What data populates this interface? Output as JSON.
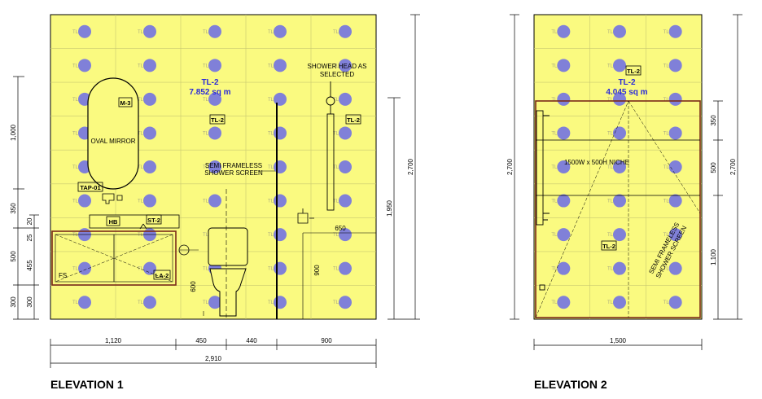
{
  "titles": {
    "elevation1": "ELEVATION 1",
    "elevation2": "ELEVATION 2"
  },
  "colors": {
    "tile_fill": "#fafa80",
    "dot": "#8080d8",
    "tag_blue": "#2b2bd9",
    "cabinet_line": "#7a2a1a"
  },
  "icons": {
    "tile_marker": "filled-circle",
    "fixture": "outline-drawing"
  },
  "elevation1": {
    "area_tag": "TL-2",
    "area_value": "7.852 sq m",
    "tile_code": "TL-2",
    "tags": {
      "mirror": "M-3",
      "tap": "TAP-01",
      "hb": "HB",
      "st": "ST-2",
      "la": "LA-2",
      "tl_mid": "TL-2",
      "tl_right": "TL-2"
    },
    "labels": {
      "oval_mirror": "OVAL MIRROR",
      "shower_head_1": "SHOWER HEAD AS",
      "shower_head_2": "SELECTED",
      "screen_1": "SEMI FRAMELESS",
      "screen_2": "SHOWER SCREEN",
      "fs": "FS"
    },
    "dims": {
      "bottom": [
        "1,120",
        "450",
        "440",
        "900"
      ],
      "total": "2,910",
      "left": [
        "1,000",
        "350",
        "20",
        "25",
        "500",
        "455",
        "300",
        "300"
      ],
      "right_h": "1,950",
      "right_total": "2,700",
      "mixer_offset": "650",
      "shower_900": "900",
      "wc_600": "600"
    }
  },
  "elevation2": {
    "area_tag": "TL-2",
    "area_value": "4.045 sq m",
    "tile_code": "TL-2",
    "tags": {
      "tl_top": "TL-2",
      "tl_mid": "TL-2"
    },
    "labels": {
      "niche": "1500W x 500H NICHE",
      "screen_1": "SEMI FRAMELESS",
      "screen_2": "SHOWER SCREEN"
    },
    "dims": {
      "bottom": "1,500",
      "left": "2,700",
      "right": [
        "350",
        "500",
        "1,100"
      ],
      "right_total": "2,700"
    }
  }
}
